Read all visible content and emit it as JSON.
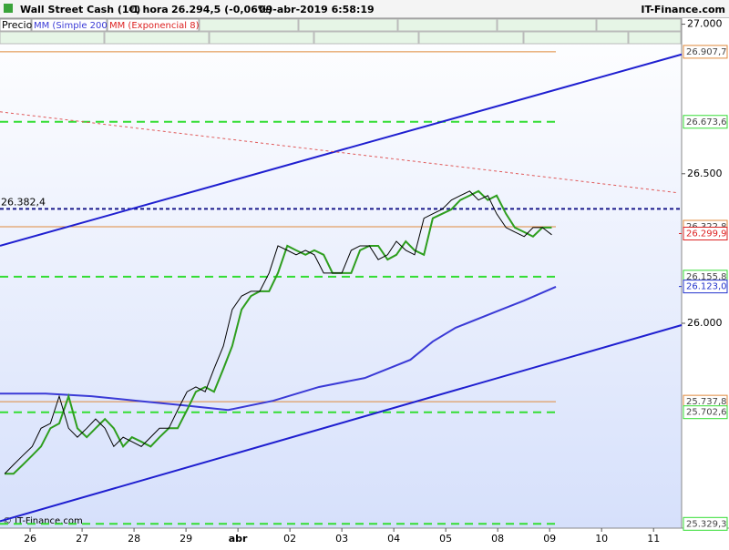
{
  "header": {
    "instrument": "Wall Street Cash (1€)",
    "period": "1 hora",
    "quote": "26.294,5 (-0,06%)",
    "timestamp": "09-abr-2019 6:58:19",
    "brand": "IT-Finance.com"
  },
  "legend": {
    "price": "Precio",
    "sma": "MM (Simple 200)",
    "ema": "MM (Exponencial 8)"
  },
  "chart_data": {
    "type": "line",
    "watermark": "© IT-Finance.com",
    "xlim": [
      -0.58,
      12.54
    ],
    "xticks": [
      {
        "value": 0,
        "label": "26"
      },
      {
        "value": 1,
        "label": "27"
      },
      {
        "value": 2,
        "label": "28"
      },
      {
        "value": 3,
        "label": "29"
      },
      {
        "value": 4,
        "label": "abr"
      },
      {
        "value": 5,
        "label": "02"
      },
      {
        "value": 6,
        "label": "03"
      },
      {
        "value": 7,
        "label": "04"
      },
      {
        "value": 8,
        "label": "05"
      },
      {
        "value": 9,
        "label": "08"
      },
      {
        "value": 10,
        "label": "09"
      },
      {
        "value": 11,
        "label": "10"
      },
      {
        "value": 12,
        "label": "11"
      }
    ],
    "ylim": [
      25315,
      27020
    ],
    "yticks": [
      {
        "value": 27000,
        "label": "27.000"
      },
      {
        "value": 26500,
        "label": "26.500"
      },
      {
        "value": 26000,
        "label": "26.000"
      }
    ],
    "series": [
      {
        "name": "Precio",
        "color": "#000000",
        "x": [
          -0.49,
          -0.32,
          -0.14,
          0.04,
          0.21,
          0.39,
          0.56,
          0.74,
          0.91,
          1.09,
          1.26,
          1.44,
          1.61,
          1.79,
          1.96,
          2.14,
          2.32,
          2.49,
          2.67,
          2.84,
          3.02,
          3.19,
          3.37,
          3.54,
          3.72,
          3.89,
          4.07,
          4.25,
          4.42,
          4.6,
          4.77,
          4.95,
          5.12,
          5.3,
          5.47,
          5.65,
          5.82,
          6.0,
          6.18,
          6.35,
          6.53,
          6.7,
          6.88,
          7.05,
          7.23,
          7.4,
          7.58,
          7.75,
          7.93,
          8.11,
          8.28,
          8.46,
          8.63,
          8.81,
          8.98,
          9.16,
          9.33,
          9.51,
          9.68,
          9.86,
          10.04
        ],
        "values": [
          25497,
          25527,
          25558,
          25588,
          25649,
          25665,
          25756,
          25649,
          25619,
          25649,
          25680,
          25649,
          25588,
          25619,
          25604,
          25588,
          25619,
          25649,
          25649,
          25710,
          25771,
          25787,
          25771,
          25848,
          25924,
          26046,
          26091,
          26107,
          26107,
          26168,
          26259,
          26244,
          26229,
          26244,
          26229,
          26168,
          26168,
          26168,
          26244,
          26259,
          26259,
          26213,
          26229,
          26274,
          26244,
          26229,
          26351,
          26366,
          26381,
          26412,
          26427,
          26442,
          26412,
          26427,
          26366,
          26320,
          26305,
          26290,
          26320,
          26320,
          26296
        ]
      },
      {
        "name": "MM (Exponencial 8)",
        "color": "#2e9e1e",
        "x": [
          -0.49,
          -0.32,
          -0.14,
          0.04,
          0.21,
          0.39,
          0.56,
          0.74,
          0.91,
          1.09,
          1.26,
          1.44,
          1.61,
          1.79,
          1.96,
          2.14,
          2.32,
          2.49,
          2.67,
          2.84,
          3.02,
          3.19,
          3.37,
          3.54,
          3.72,
          3.89,
          4.07,
          4.25,
          4.42,
          4.6,
          4.77,
          4.95,
          5.12,
          5.3,
          5.47,
          5.65,
          5.82,
          6.0,
          6.18,
          6.35,
          6.53,
          6.7,
          6.88,
          7.05,
          7.23,
          7.4,
          7.58,
          7.75,
          7.93,
          8.11,
          8.28,
          8.46,
          8.63,
          8.81,
          8.98,
          9.16,
          9.33,
          9.51,
          9.68,
          9.86,
          10.04
        ],
        "values": [
          25497,
          25497,
          25527,
          25558,
          25588,
          25649,
          25665,
          25756,
          25649,
          25619,
          25649,
          25680,
          25649,
          25588,
          25619,
          25604,
          25588,
          25619,
          25649,
          25649,
          25710,
          25771,
          25787,
          25771,
          25848,
          25924,
          26046,
          26091,
          26107,
          26107,
          26168,
          26259,
          26244,
          26229,
          26244,
          26229,
          26168,
          26168,
          26168,
          26244,
          26259,
          26259,
          26213,
          26229,
          26274,
          26244,
          26229,
          26351,
          26366,
          26381,
          26412,
          26427,
          26442,
          26412,
          26427,
          26366,
          26320,
          26305,
          26290,
          26320,
          26320
        ]
      },
      {
        "name": "MM (Simple 200)",
        "color": "#3a3ad6",
        "x": [
          -0.58,
          0.3,
          1.18,
          2.05,
          2.93,
          3.81,
          4.68,
          5.56,
          6.44,
          7.32,
          7.75,
          8.19,
          9.07,
          9.51,
          10.12
        ],
        "values": [
          25765,
          25765,
          25756,
          25741,
          25726,
          25710,
          25741,
          25787,
          25817,
          25878,
          25939,
          25985,
          26046,
          26076,
          26122
        ]
      }
    ],
    "trendlines": [
      {
        "x": [
          -0.58,
          12.54
        ],
        "values": [
          26259,
          26899
        ],
        "color": "#1f1fd0",
        "dash": false
      },
      {
        "x": [
          -0.58,
          12.54
        ],
        "values": [
          25338,
          25994
        ],
        "color": "#1f1fd0",
        "dash": false
      },
      {
        "x": [
          -0.58,
          12.48
        ],
        "values": [
          26707,
          26436
        ],
        "color": "#e05a5a",
        "dash": true
      }
    ],
    "levels": [
      {
        "value": 26907.7,
        "label": "26.907,7",
        "color": "#e08a3c",
        "dash": false
      },
      {
        "value": 26673.6,
        "label": "26.673,6",
        "color": "#33dd33",
        "dash": true
      },
      {
        "value": 26382.4,
        "label": "26.382,4",
        "color": "#1a1a8c",
        "dash": true
      },
      {
        "value": 26322.8,
        "label": "26.322,8",
        "color": "#e08a3c",
        "dash": false
      },
      {
        "value": 26155.8,
        "label": "26.155,8",
        "color": "#33dd33",
        "dash": true
      },
      {
        "value": 25737.8,
        "label": "25.737,8",
        "color": "#e08a3c",
        "dash": false
      },
      {
        "value": 25702.6,
        "label": "25.702,6",
        "color": "#33dd33",
        "dash": true
      },
      {
        "value": 25329.3,
        "label": "25.329,3",
        "color": "#33dd33",
        "dash": true
      }
    ],
    "price_labels": [
      {
        "value": 26299.9,
        "label": "26.299,9",
        "color": "#dd2222"
      },
      {
        "value": 26123.0,
        "label": "26.123,0",
        "color": "#2233cc"
      }
    ]
  }
}
